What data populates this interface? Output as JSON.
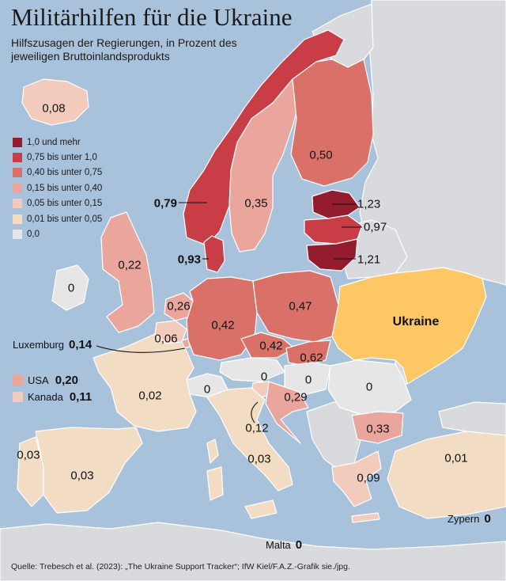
{
  "header": {
    "title": "Militärhilfen für die Ukraine",
    "subtitle": "Hilfszusagen der Regierungen, in Prozent des jeweiligen Bruttoinlandsprodukts"
  },
  "legend": [
    {
      "label": "1,0 und mehr",
      "color": "#931d2e"
    },
    {
      "label": "0,75 bis unter 1,0",
      "color": "#c83d46"
    },
    {
      "label": "0,40 bis unter 0,75",
      "color": "#da7169"
    },
    {
      "label": "0,15 bis unter 0,40",
      "color": "#eaa69d"
    },
    {
      "label": "0,05 bis unter 0,15",
      "color": "#f2cbbd"
    },
    {
      "label": "0,01 bis unter 0,05",
      "color": "#f2dcc4"
    },
    {
      "label": "0,0",
      "color": "#e6e6e7"
    }
  ],
  "colors": {
    "sea": "#a9c2dc",
    "non_data_land": "#d8dade",
    "ukraine": "#fdc766",
    "border": "#ffffff"
  },
  "countries": {
    "iceland": "0,08",
    "norway": "0,79",
    "sweden": "0,35",
    "finland": "0,50",
    "estonia": "1,23",
    "latvia": "0,97",
    "lithuania": "1,21",
    "denmark": "0,93",
    "uk": "0,22",
    "ireland": "0",
    "netherlands": "0,26",
    "belgium": "0,06",
    "luxembourg_name": "Luxemburg",
    "luxembourg": "0,14",
    "germany": "0,42",
    "poland": "0,47",
    "czechia": "0,42",
    "slovakia": "0,62",
    "austria": "0",
    "hungary": "0",
    "switzerland": "0",
    "slovenia": "0,12",
    "croatia": "0,29",
    "romania": "0",
    "bulgaria": "0,33",
    "greece": "0,09",
    "france": "0,02",
    "italy": "0,03",
    "spain": "0,03",
    "portugal": "0,03",
    "turkey": "0,01",
    "ukraine": "Ukraine"
  },
  "others": [
    {
      "name": "USA",
      "value": "0,20",
      "color": "#eaa69d"
    },
    {
      "name": "Kanada",
      "value": "0,11",
      "color": "#f2cbbd"
    }
  ],
  "notes": {
    "zypern_name": "Zypern",
    "zypern": "0",
    "malta_name": "Malta",
    "malta": "0"
  },
  "source": "Quelle: Trebesch et al. (2023): „The Ukraine Support Tracker“; IfW Kiel/F.A.Z.-Grafik sie./jpg."
}
